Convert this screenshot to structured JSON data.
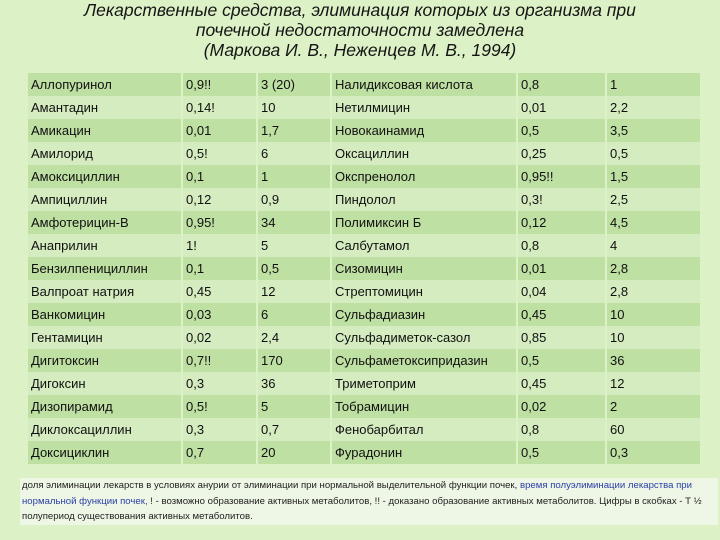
{
  "title": {
    "lines": [
      "Лекарственные средства, элиминация которых из организма при",
      "почечной недостаточности замедлена",
      "(Маркова И. В., Неженцев М. В., 1994)"
    ]
  },
  "rows": [
    {
      "left": {
        "name": "Аллопуринол",
        "a": "0,9!!",
        "b": "3 (20)"
      },
      "right": {
        "name": "Налидиксовая кислота",
        "a": "0,8",
        "b": "1"
      }
    },
    {
      "left": {
        "name": "Амантадин",
        "a": "0,14!",
        "b": "10"
      },
      "right": {
        "name": "Нетилмицин",
        "a": "0,01",
        "b": "2,2"
      }
    },
    {
      "left": {
        "name": "Амикацин",
        "a": "0,01",
        "b": "1,7"
      },
      "right": {
        "name": "Новокаинамид",
        "a": "0,5",
        "b": "3,5"
      }
    },
    {
      "left": {
        "name": "Амилорид",
        "a": "0,5!",
        "b": "6"
      },
      "right": {
        "name": "Оксациллин",
        "a": "0,25",
        "b": "0,5"
      }
    },
    {
      "left": {
        "name": "Амоксициллин",
        "a": "0,1",
        "b": "1"
      },
      "right": {
        "name": "Окспренолол",
        "a": "0,95!!",
        "b": "1,5"
      }
    },
    {
      "left": {
        "name": "Ампициллин",
        "a": "0,12",
        "b": "0,9"
      },
      "right": {
        "name": "Пиндолол",
        "a": "0,3!",
        "b": "2,5"
      }
    },
    {
      "left": {
        "name": "Амфотерицин-В",
        "a": "0,95!",
        "b": "34"
      },
      "right": {
        "name": "Полимиксин Б",
        "a": "0,12",
        "b": "4,5"
      }
    },
    {
      "left": {
        "name": "Анаприлин",
        "a": "1!",
        "b": "5"
      },
      "right": {
        "name": "Салбутамол",
        "a": "0,8",
        "b": "4"
      }
    },
    {
      "left": {
        "name": "Бензилпенициллин",
        "a": "0,1",
        "b": "0,5"
      },
      "right": {
        "name": "Сизомицин",
        "a": "0,01",
        "b": "2,8"
      }
    },
    {
      "left": {
        "name": "Валпроат натрия",
        "a": "0,45",
        "b": "12"
      },
      "right": {
        "name": "Стрептомицин",
        "a": "0,04",
        "b": "2,8"
      }
    },
    {
      "left": {
        "name": "Ванкомицин",
        "a": "0,03",
        "b": "6"
      },
      "right": {
        "name": "Сульфадиазин",
        "a": "0,45",
        "b": "10"
      }
    },
    {
      "left": {
        "name": "Гентамицин",
        "a": "0,02",
        "b": "2,4"
      },
      "right": {
        "name": "Сульфадиметок-сазол",
        "a": "0,85",
        "b": "10"
      }
    },
    {
      "left": {
        "name": "Дигитоксин",
        "a": "0,7!!",
        "b": "170"
      },
      "right": {
        "name": "Сульфаметоксипридазин",
        "a": "0,5",
        "b": "36"
      }
    },
    {
      "left": {
        "name": "Дигоксин",
        "a": "0,3",
        "b": "36"
      },
      "right": {
        "name": "Триметоприм",
        "a": "0,45",
        "b": "12"
      }
    },
    {
      "left": {
        "name": "Дизопирамид",
        "a": "0,5!",
        "b": "5"
      },
      "right": {
        "name": "Тобрамицин",
        "a": "0,02",
        "b": "2"
      }
    },
    {
      "left": {
        "name": "Диклоксациллин",
        "a": "0,3",
        "b": "0,7"
      },
      "right": {
        "name": "Фенобарбитал",
        "a": "0,8",
        "b": "60"
      }
    },
    {
      "left": {
        "name": "Доксициклин",
        "a": "0,7",
        "b": "20"
      },
      "right": {
        "name": "Фурадонин",
        "a": "0,5",
        "b": "0,3"
      }
    }
  ],
  "footnote": {
    "part1": "доля элиминации лекарств в условиях анурии от элиминации при нормальной выделительной функции почек, ",
    "part2": "время полуэлиминации лекарства при нормальной функции почек,",
    "part3": " ! - возможно образование активных метаболитов, !! - доказано образование активных метаболитов. Цифры в скобках - Т ½ полупериод существования активных метаболитов."
  }
}
